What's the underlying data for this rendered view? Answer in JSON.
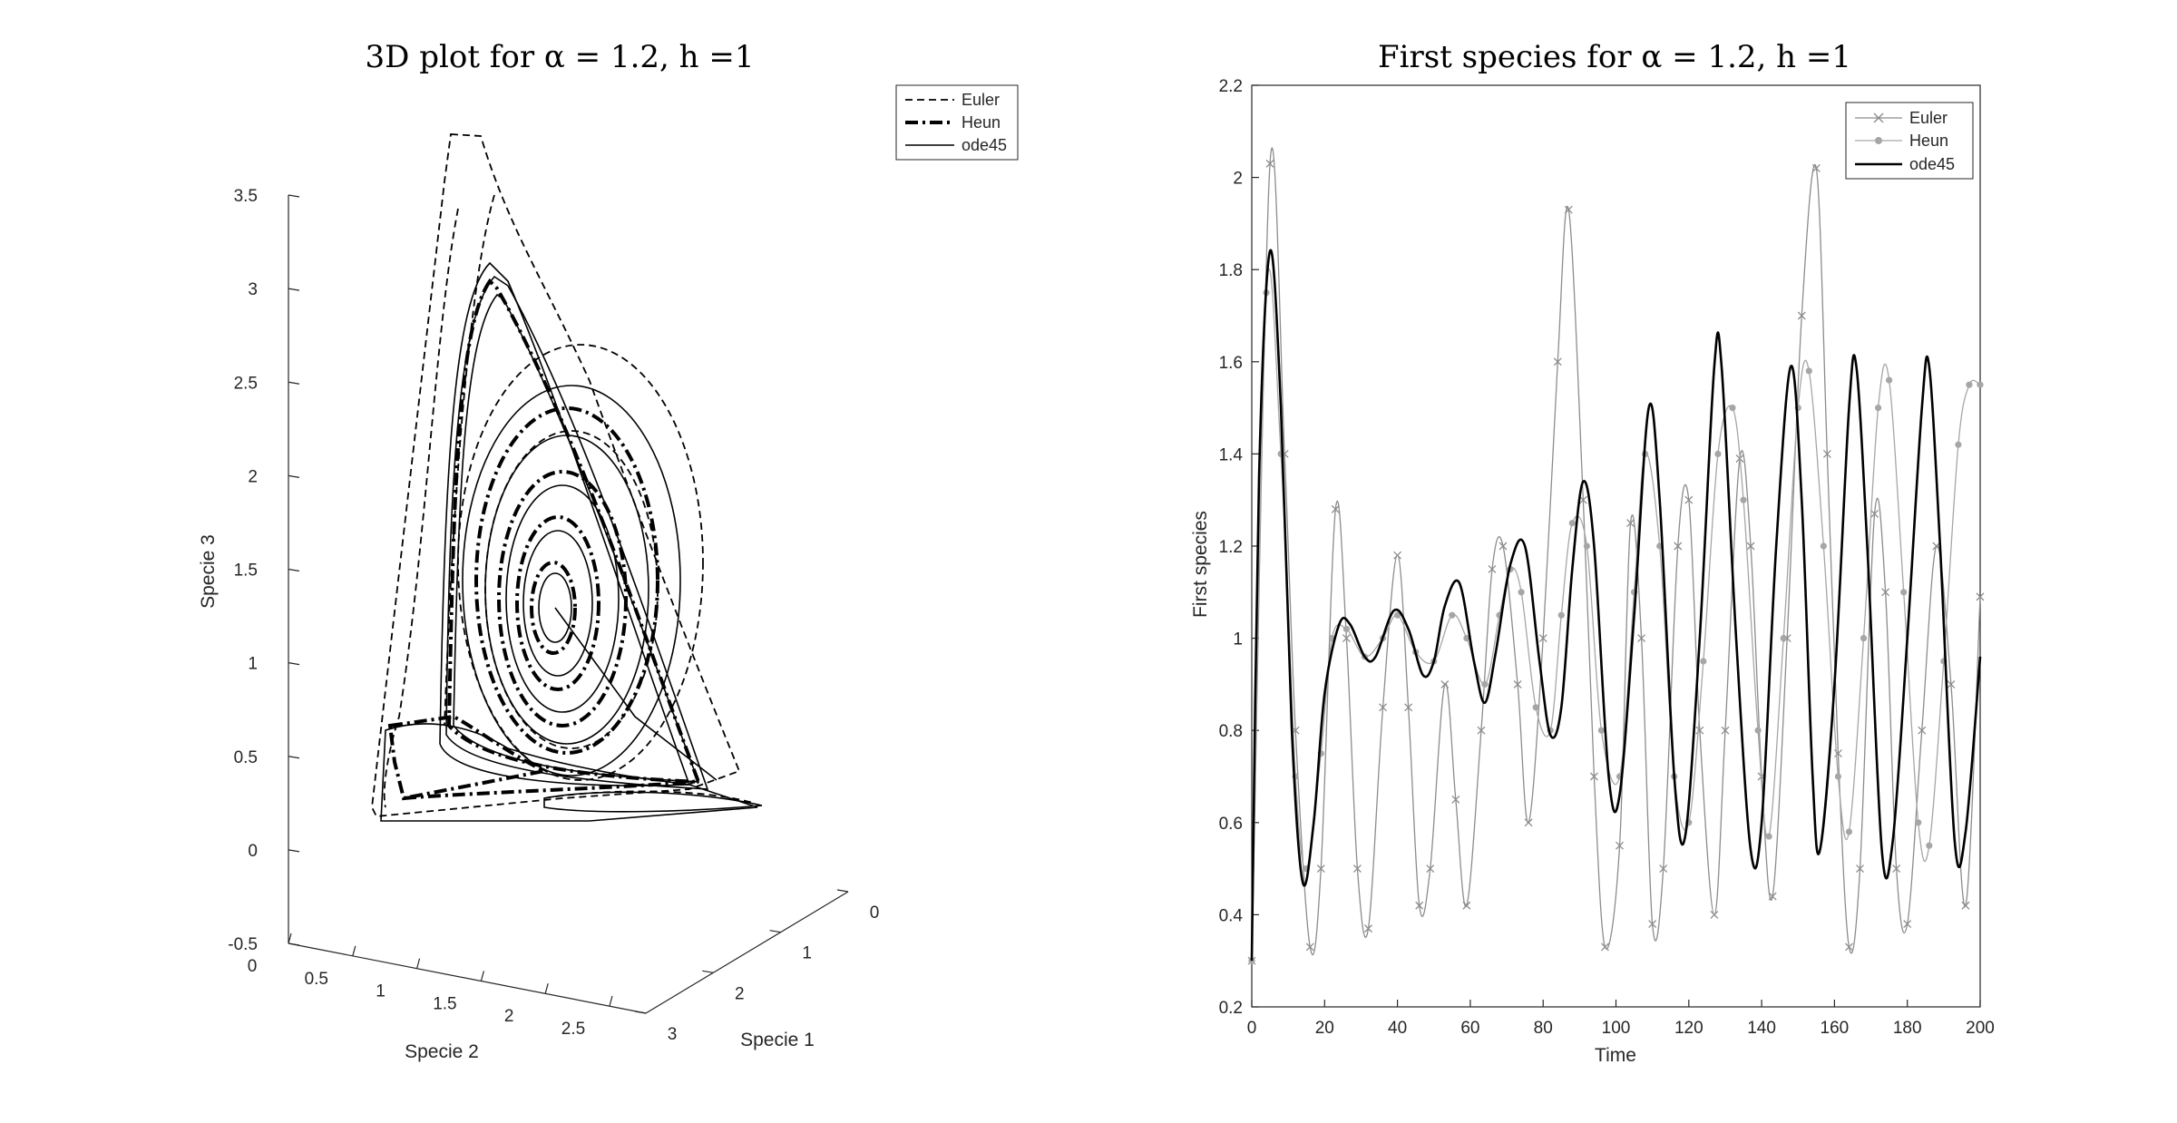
{
  "chart_data": [
    {
      "type": "line",
      "projection": "3d",
      "title": "3D plot for α = 1.2, h =1",
      "xlabel": "Specie 1",
      "ylabel": "Specie 2",
      "zlabel": "Specie 3",
      "xlim": [
        0,
        3
      ],
      "ylim": [
        0,
        2.5
      ],
      "zlim": [
        -0.5,
        3.5
      ],
      "x_ticks": [
        "0",
        "1",
        "2",
        "3"
      ],
      "y_ticks": [
        "0",
        "0.5",
        "1",
        "1.5",
        "2",
        "2.5"
      ],
      "z_ticks": [
        "-0.5",
        "0",
        "0.5",
        "1",
        "1.5",
        "2",
        "2.5",
        "3",
        "3.5"
      ],
      "grid": false,
      "legend": "top-right",
      "series": [
        {
          "name": "Euler",
          "style": "dashed",
          "color": "#000000"
        },
        {
          "name": "Heun",
          "style": "dash-dot-thick",
          "color": "#000000"
        },
        {
          "name": "ode45",
          "style": "solid",
          "color": "#000000"
        }
      ]
    },
    {
      "type": "line",
      "title": "First species for α = 1.2, h =1",
      "xlabel": "Time",
      "ylabel": "First species",
      "xlim": [
        0,
        200
      ],
      "ylim": [
        0.2,
        2.2
      ],
      "x_ticks": [
        "0",
        "20",
        "40",
        "60",
        "80",
        "100",
        "120",
        "140",
        "160",
        "180",
        "200"
      ],
      "y_ticks": [
        "0.2",
        "0.4",
        "0.6",
        "0.8",
        "1",
        "1.2",
        "1.4",
        "1.6",
        "1.8",
        "2",
        "2.2"
      ],
      "grid": false,
      "legend": "top-right",
      "series": [
        {
          "name": "Euler",
          "marker": "x",
          "color": "#8c8c8c",
          "points": [
            [
              0,
              0.3
            ],
            [
              5,
              2.03
            ],
            [
              9,
              1.4
            ],
            [
              12,
              0.8
            ],
            [
              16,
              0.33
            ],
            [
              19,
              0.5
            ],
            [
              23,
              1.28
            ],
            [
              26,
              1.0
            ],
            [
              29,
              0.5
            ],
            [
              32,
              0.37
            ],
            [
              36,
              0.85
            ],
            [
              40,
              1.18
            ],
            [
              43,
              0.85
            ],
            [
              46,
              0.42
            ],
            [
              49,
              0.5
            ],
            [
              53,
              0.9
            ],
            [
              56,
              0.65
            ],
            [
              59,
              0.42
            ],
            [
              63,
              0.8
            ],
            [
              66,
              1.15
            ],
            [
              69,
              1.2
            ],
            [
              73,
              0.9
            ],
            [
              76,
              0.6
            ],
            [
              80,
              1.0
            ],
            [
              84,
              1.6
            ],
            [
              87,
              1.93
            ],
            [
              91,
              1.3
            ],
            [
              94,
              0.7
            ],
            [
              97,
              0.33
            ],
            [
              101,
              0.55
            ],
            [
              104,
              1.25
            ],
            [
              107,
              1.0
            ],
            [
              110,
              0.38
            ],
            [
              113,
              0.5
            ],
            [
              117,
              1.2
            ],
            [
              120,
              1.3
            ],
            [
              123,
              0.8
            ],
            [
              127,
              0.4
            ],
            [
              130,
              0.8
            ],
            [
              134,
              1.39
            ],
            [
              137,
              1.2
            ],
            [
              140,
              0.7
            ],
            [
              143,
              0.44
            ],
            [
              147,
              1.0
            ],
            [
              151,
              1.7
            ],
            [
              155,
              2.02
            ],
            [
              158,
              1.4
            ],
            [
              161,
              0.75
            ],
            [
              164,
              0.33
            ],
            [
              167,
              0.5
            ],
            [
              171,
              1.27
            ],
            [
              174,
              1.1
            ],
            [
              177,
              0.5
            ],
            [
              180,
              0.38
            ],
            [
              184,
              0.8
            ],
            [
              188,
              1.2
            ],
            [
              192,
              0.9
            ],
            [
              196,
              0.42
            ],
            [
              200,
              1.09
            ]
          ]
        },
        {
          "name": "Heun",
          "marker": "dot",
          "color": "#a6a6a6",
          "points": [
            [
              0,
              0.3
            ],
            [
              4,
              1.75
            ],
            [
              8,
              1.4
            ],
            [
              12,
              0.7
            ],
            [
              15,
              0.5
            ],
            [
              19,
              0.75
            ],
            [
              22,
              1.0
            ],
            [
              26,
              1.02
            ],
            [
              31,
              0.96
            ],
            [
              36,
              1.0
            ],
            [
              40,
              1.05
            ],
            [
              45,
              0.97
            ],
            [
              50,
              0.95
            ],
            [
              55,
              1.05
            ],
            [
              59,
              1.0
            ],
            [
              64,
              0.9
            ],
            [
              68,
              1.05
            ],
            [
              71,
              1.15
            ],
            [
              74,
              1.1
            ],
            [
              78,
              0.85
            ],
            [
              82,
              0.8
            ],
            [
              85,
              1.05
            ],
            [
              88,
              1.25
            ],
            [
              92,
              1.2
            ],
            [
              96,
              0.8
            ],
            [
              101,
              0.7
            ],
            [
              105,
              1.1
            ],
            [
              108,
              1.4
            ],
            [
              112,
              1.2
            ],
            [
              116,
              0.7
            ],
            [
              120,
              0.6
            ],
            [
              124,
              0.95
            ],
            [
              128,
              1.4
            ],
            [
              132,
              1.5
            ],
            [
              135,
              1.3
            ],
            [
              139,
              0.8
            ],
            [
              142,
              0.57
            ],
            [
              146,
              1.0
            ],
            [
              150,
              1.5
            ],
            [
              153,
              1.58
            ],
            [
              157,
              1.2
            ],
            [
              161,
              0.7
            ],
            [
              164,
              0.58
            ],
            [
              168,
              1.0
            ],
            [
              172,
              1.5
            ],
            [
              175,
              1.56
            ],
            [
              179,
              1.1
            ],
            [
              183,
              0.6
            ],
            [
              186,
              0.55
            ],
            [
              190,
              0.95
            ],
            [
              194,
              1.42
            ],
            [
              197,
              1.55
            ],
            [
              200,
              1.55
            ]
          ]
        },
        {
          "name": "ode45",
          "marker": "none",
          "color": "#000000",
          "points": [
            [
              0,
              0.3
            ],
            [
              2,
              1.35
            ],
            [
              5,
              1.84
            ],
            [
              8,
              1.5
            ],
            [
              11,
              0.8
            ],
            [
              14,
              0.47
            ],
            [
              17,
              0.6
            ],
            [
              20,
              0.88
            ],
            [
              24,
              1.03
            ],
            [
              27,
              1.03
            ],
            [
              31,
              0.96
            ],
            [
              34,
              0.96
            ],
            [
              39,
              1.06
            ],
            [
              43,
              1.02
            ],
            [
              47,
              0.92
            ],
            [
              50,
              0.95
            ],
            [
              53,
              1.07
            ],
            [
              57,
              1.12
            ],
            [
              61,
              0.95
            ],
            [
              64,
              0.86
            ],
            [
              67,
              0.97
            ],
            [
              71,
              1.16
            ],
            [
              75,
              1.2
            ],
            [
              79,
              0.95
            ],
            [
              82,
              0.79
            ],
            [
              85,
              0.85
            ],
            [
              88,
              1.15
            ],
            [
              91,
              1.34
            ],
            [
              94,
              1.2
            ],
            [
              98,
              0.7
            ],
            [
              101,
              0.66
            ],
            [
              105,
              1.05
            ],
            [
              109,
              1.5
            ],
            [
              112,
              1.3
            ],
            [
              116,
              0.7
            ],
            [
              119,
              0.57
            ],
            [
              123,
              1.0
            ],
            [
              127,
              1.59
            ],
            [
              129,
              1.59
            ],
            [
              133,
              1.0
            ],
            [
              137,
              0.54
            ],
            [
              140,
              0.6
            ],
            [
              144,
              1.2
            ],
            [
              148,
              1.59
            ],
            [
              151,
              1.3
            ],
            [
              154,
              0.7
            ],
            [
              156,
              0.54
            ],
            [
              160,
              0.9
            ],
            [
              164,
              1.5
            ],
            [
              166,
              1.59
            ],
            [
              169,
              1.2
            ],
            [
              173,
              0.54
            ],
            [
              176,
              0.56
            ],
            [
              180,
              1.0
            ],
            [
              184,
              1.5
            ],
            [
              186,
              1.59
            ],
            [
              189,
              1.2
            ],
            [
              193,
              0.56
            ],
            [
              196,
              0.58
            ],
            [
              200,
              0.96
            ]
          ]
        }
      ]
    }
  ]
}
